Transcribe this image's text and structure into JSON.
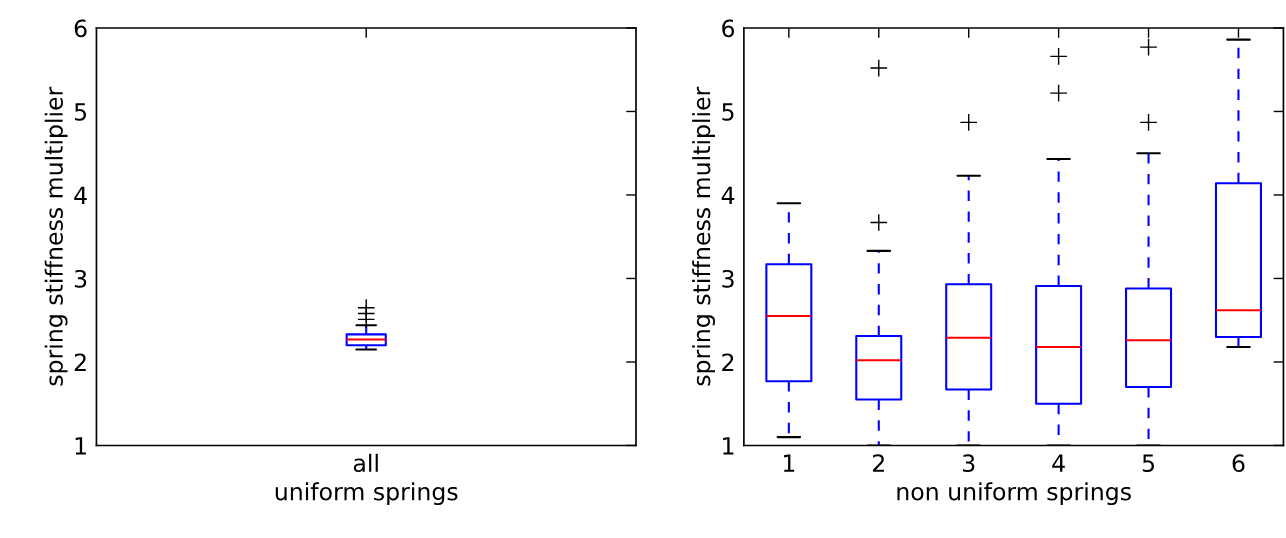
{
  "chart_data": [
    {
      "type": "box",
      "xlabel": "uniform springs",
      "ylabel": "spring stiffness multiplier",
      "categories": [
        "all"
      ],
      "ylim": [
        1,
        6
      ],
      "yticks": [
        1,
        2,
        3,
        4,
        5,
        6
      ],
      "boxes": [
        {
          "low": 2.15,
          "q1": 2.2,
          "median": 2.27,
          "q3": 2.33,
          "high": 2.44,
          "outliers": [
            2.51,
            2.58,
            2.65
          ]
        }
      ]
    },
    {
      "type": "box",
      "xlabel": "non uniform springs",
      "ylabel": "spring stiffness multiplier",
      "categories": [
        "1",
        "2",
        "3",
        "4",
        "5",
        "6"
      ],
      "ylim": [
        1,
        6
      ],
      "yticks": [
        1,
        2,
        3,
        4,
        5,
        6
      ],
      "boxes": [
        {
          "low": 1.1,
          "q1": 1.77,
          "median": 2.55,
          "q3": 3.17,
          "high": 3.9
        },
        {
          "low": 1.0,
          "q1": 1.55,
          "median": 2.02,
          "q3": 2.31,
          "high": 3.33,
          "outliers": [
            3.67,
            5.52
          ]
        },
        {
          "low": 1.0,
          "q1": 1.67,
          "median": 2.29,
          "q3": 2.93,
          "high": 4.23,
          "outliers": [
            4.87
          ]
        },
        {
          "low": 1.0,
          "q1": 1.5,
          "median": 2.18,
          "q3": 2.91,
          "high": 4.43,
          "outliers": [
            5.22,
            5.66
          ]
        },
        {
          "low": 1.0,
          "q1": 1.7,
          "median": 2.26,
          "q3": 2.88,
          "high": 4.5,
          "outliers": [
            4.87,
            5.77
          ]
        },
        {
          "low": 2.18,
          "q1": 2.3,
          "median": 2.62,
          "q3": 4.14,
          "high": 5.86
        }
      ]
    }
  ]
}
